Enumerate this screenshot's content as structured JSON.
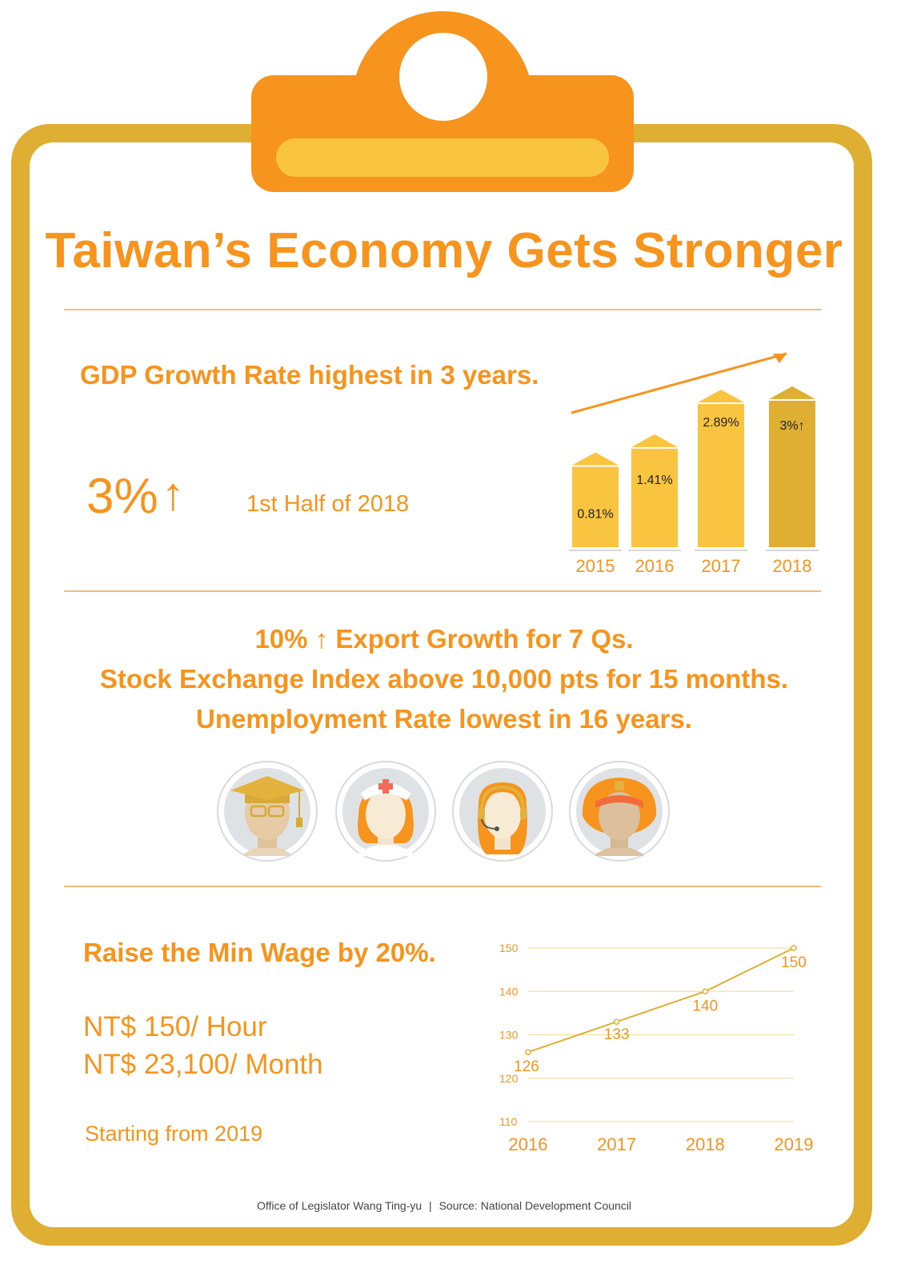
{
  "title": "Taiwan’s Economy Gets Stronger",
  "gdp": {
    "heading": "GDP Growth Rate highest in 3 years.",
    "big_value": "3%",
    "period": "1st Half of 2018"
  },
  "highlights": [
    "10% ↑ Export Growth for 7 Qs.",
    "Stock Exchange Index above 10,000 pts for 15 months.",
    "Unemployment Rate lowest in 16 years."
  ],
  "avatars": [
    "graduate-icon",
    "nurse-icon",
    "operator-icon",
    "worker-icon"
  ],
  "wage": {
    "heading": "Raise the Min Wage by 20%.",
    "hourly": "NT$ 150/ Hour",
    "monthly": "NT$ 23,100/ Month",
    "start": "Starting from 2019"
  },
  "footer": {
    "office": "Office of Legislator Wang Ting-yu",
    "source": "Source: National Development Council"
  },
  "colors": {
    "orange": "#f7941d",
    "gold": "#dfaf33",
    "yellow": "#f9c440"
  },
  "chart_data": [
    {
      "type": "bar",
      "categories": [
        "2015",
        "2016",
        "2017",
        "2018"
      ],
      "values": [
        0.81,
        1.41,
        2.89,
        3
      ],
      "labels": [
        "0.81%",
        "1.41%",
        "2.89%",
        "3%↑"
      ],
      "highlight_last": true
    },
    {
      "type": "line",
      "x": [
        "2016",
        "2017",
        "2018",
        "2019"
      ],
      "values": [
        126,
        133,
        140,
        150
      ],
      "yticks": [
        110,
        120,
        130,
        140,
        150
      ],
      "ylim": [
        110,
        150
      ],
      "grid": true
    }
  ]
}
